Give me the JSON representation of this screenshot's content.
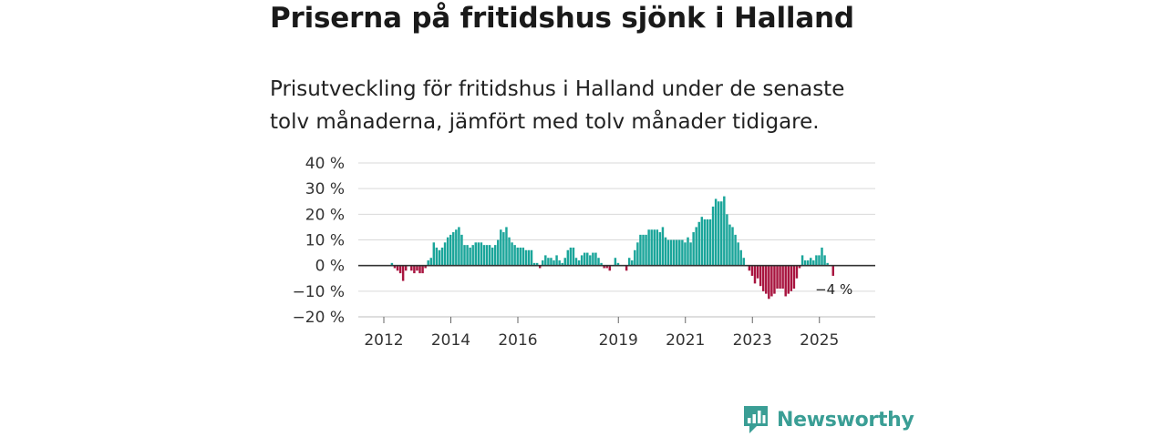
{
  "title": "Priserna på fritidshus sjönk i Halland",
  "subtitle": "Prisutveckling för fritidshus i Halland under de senaste tolv månaderna, jämfört med tolv månader tidigare.",
  "brand": {
    "name": "Newsworthy",
    "color": "#3a9e95",
    "icon": "bar-chart-speech-icon"
  },
  "colors": {
    "positive": "#1aa59a",
    "negative": "#a8143f",
    "grid": "#d9d9d9",
    "zero": "#333333"
  },
  "chart_data": {
    "type": "bar",
    "title": "",
    "xlabel": "",
    "ylabel": "",
    "ylim": [
      -20,
      40
    ],
    "yticks": [
      40,
      30,
      20,
      10,
      0,
      -10,
      -20
    ],
    "ytick_labels": [
      "40 %",
      "30 %",
      "20 %",
      "10 %",
      "0 %",
      "−10 %",
      "−20 %"
    ],
    "start_year": 2011,
    "start_month": 10,
    "xticks": [
      {
        "year": 2012,
        "label": "2012"
      },
      {
        "year": 2014,
        "label": "2014"
      },
      {
        "year": 2016,
        "label": "2016"
      },
      {
        "year": 2019,
        "label": "2019"
      },
      {
        "year": 2021,
        "label": "2021"
      },
      {
        "year": 2023,
        "label": "2023"
      },
      {
        "year": 2025,
        "label": "2025"
      }
    ],
    "annotation": {
      "label": "−4 %",
      "index": 164
    },
    "values": [
      0,
      0,
      0,
      0,
      0,
      0,
      1,
      -1,
      -2,
      -3,
      -6,
      -2,
      0,
      -2,
      -3,
      -2,
      -3,
      -3,
      -1,
      2,
      3,
      9,
      7,
      6,
      7,
      9,
      11,
      12,
      13,
      14,
      15,
      12,
      8,
      8,
      7,
      8,
      9,
      9,
      9,
      8,
      8,
      8,
      7,
      8,
      10,
      14,
      13,
      15,
      11,
      9,
      8,
      7,
      7,
      7,
      6,
      6,
      6,
      1,
      1,
      -1,
      2,
      4,
      3,
      3,
      2,
      4,
      2,
      1,
      3,
      6,
      7,
      7,
      3,
      2,
      4,
      5,
      5,
      4,
      5,
      5,
      3,
      1,
      -1,
      -1,
      -2,
      0,
      3,
      1,
      0,
      0,
      -2,
      3,
      2,
      6,
      9,
      12,
      12,
      12,
      14,
      14,
      14,
      14,
      13,
      15,
      11,
      10,
      10,
      10,
      10,
      10,
      10,
      9,
      11,
      9,
      13,
      15,
      17,
      19,
      18,
      18,
      18,
      23,
      26,
      25,
      25,
      27,
      20,
      16,
      15,
      12,
      9,
      6,
      3,
      0,
      -2,
      -4,
      -7,
      -5,
      -8,
      -10,
      -11,
      -13,
      -12,
      -11,
      -9,
      -9,
      -9,
      -12,
      -11,
      -10,
      -9,
      -5,
      -1,
      4,
      2,
      2,
      3,
      2,
      4,
      4,
      7,
      4,
      1,
      0,
      -4
    ]
  }
}
